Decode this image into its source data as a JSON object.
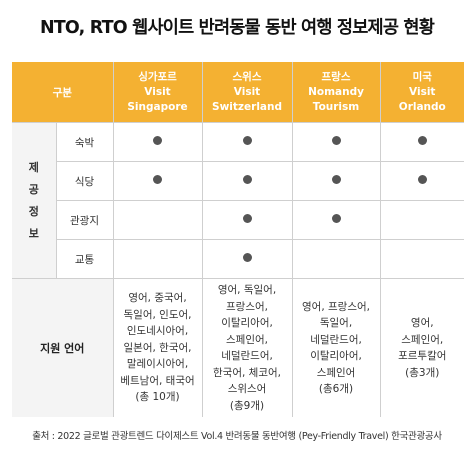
{
  "title": "NTO, RTO 웹사이트 반려동물 동반 여행 정보제공 현황",
  "header": {
    "category_label": "구분",
    "columns": [
      {
        "lines": [
          "싱가포르",
          "Visit",
          "Singapore"
        ]
      },
      {
        "lines": [
          "스위스",
          "Visit",
          "Switzerland"
        ]
      },
      {
        "lines": [
          "프랑스",
          "Nomandy",
          "Tourism"
        ]
      },
      {
        "lines": [
          "미국",
          "Visit",
          "Orlando"
        ]
      }
    ]
  },
  "group_label": [
    "제",
    "공",
    "정",
    "보"
  ],
  "rows": [
    {
      "label": "숙박",
      "marks": [
        true,
        true,
        true,
        true
      ]
    },
    {
      "label": "식당",
      "marks": [
        true,
        true,
        true,
        true
      ]
    },
    {
      "label": "관광지",
      "marks": [
        false,
        true,
        true,
        false
      ]
    },
    {
      "label": "교통",
      "marks": [
        false,
        true,
        false,
        false
      ]
    }
  ],
  "languages": {
    "label": "지원 언어",
    "columns": [
      [
        "영어, 중국어,",
        "독일어, 인도어,",
        "인도네시아어,",
        "일본어, 한국어,",
        "말레이시아어,",
        "베트남어, 태국어",
        "(총 10개)"
      ],
      [
        "영어, 독일어,",
        "프랑스어,",
        "이탈리아어,",
        "스페인어,",
        "네덜란드어,",
        "한국어, 체코어,",
        "스위스어",
        "(총9개)"
      ],
      [
        "영어, 프랑스어,",
        "독일어,",
        "네덜란드어,",
        "이탈리아어,",
        "스페인어",
        "(총6개)"
      ],
      [
        "영어,",
        "스페인어,",
        "포르투칼어",
        "(총3개)"
      ]
    ]
  },
  "source": "출처 : 2022 글로벌 관광트렌드 다이제스트 Vol.4 반려동물 동반여행 (Pey-Friendly Travel) 한국관광공사",
  "colors": {
    "header_background": "#f4b132",
    "header_text": "#ffffff",
    "label_background": "#f4f4f4",
    "dot": "#555555"
  }
}
